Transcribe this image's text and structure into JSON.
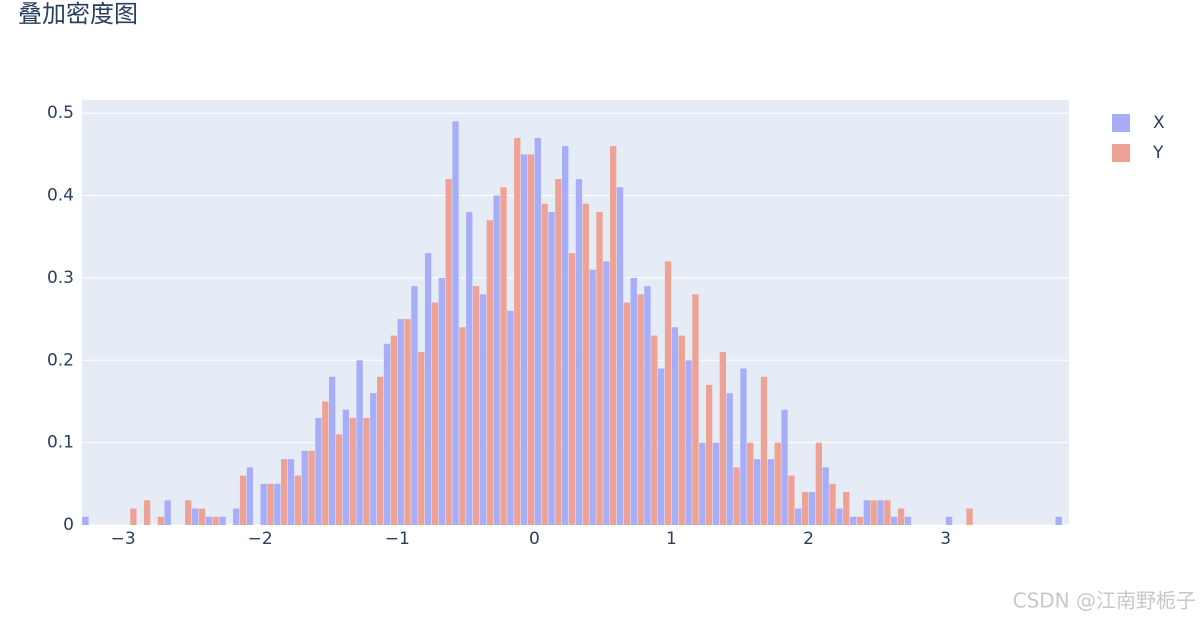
{
  "chart_data": {
    "type": "histogram",
    "title": "叠加密度图",
    "watermark": "CSDN @江南野栀子",
    "barmode": "group",
    "grid": true,
    "legend_position": "top-right",
    "bins": [
      -3.3,
      -3.2,
      -3.1,
      -3.0,
      -2.9,
      -2.8,
      -2.7,
      -2.6,
      -2.5,
      -2.4,
      -2.3,
      -2.2,
      -2.1,
      -2.0,
      -1.9,
      -1.8,
      -1.7,
      -1.6,
      -1.5,
      -1.4,
      -1.3,
      -1.2,
      -1.1,
      -1.0,
      -0.9,
      -0.8,
      -0.7,
      -0.6,
      -0.5,
      -0.4,
      -0.3,
      -0.2,
      -0.1,
      0,
      0.1,
      0.2,
      0.3,
      0.4,
      0.5,
      0.6,
      0.7,
      0.8,
      0.9,
      1.0,
      1.1,
      1.2,
      1.3,
      1.4,
      1.5,
      1.6,
      1.7,
      1.8,
      1.9,
      2.0,
      2.1,
      2.2,
      2.3,
      2.4,
      2.5,
      2.6,
      2.7,
      2.8,
      2.9,
      3.0,
      3.1,
      3.2,
      3.3,
      3.4,
      3.5,
      3.6,
      3.7,
      3.8,
      3.9
    ],
    "series": [
      {
        "name": "X",
        "color": "#a7adf7",
        "values": [
          0.01,
          0,
          0,
          0,
          0,
          0,
          0.03,
          0,
          0.02,
          0.01,
          0.01,
          0.02,
          0.07,
          0.05,
          0.05,
          0.08,
          0.09,
          0.13,
          0.18,
          0.14,
          0.2,
          0.16,
          0.22,
          0.25,
          0.29,
          0.33,
          0.3,
          0.49,
          0.38,
          0.28,
          0.4,
          0.26,
          0.45,
          0.47,
          0.38,
          0.46,
          0.42,
          0.31,
          0.32,
          0.41,
          0.3,
          0.29,
          0.19,
          0.24,
          0.2,
          0.1,
          0.1,
          0.16,
          0.19,
          0.08,
          0.08,
          0.14,
          0.02,
          0.04,
          0.07,
          0.02,
          0.01,
          0.03,
          0.03,
          0.01,
          0.01,
          0,
          0,
          0.01,
          0,
          0,
          0,
          0,
          0,
          0,
          0,
          0.01
        ]
      },
      {
        "name": "Y",
        "color": "#eea295",
        "values": [
          0,
          0,
          0,
          0.02,
          0.03,
          0.01,
          0,
          0.03,
          0.02,
          0.01,
          0,
          0.06,
          0,
          0.05,
          0.08,
          0.06,
          0.09,
          0.15,
          0.11,
          0.13,
          0.13,
          0.18,
          0.23,
          0.25,
          0.21,
          0.27,
          0.42,
          0.24,
          0.29,
          0.37,
          0.41,
          0.47,
          0.45,
          0.39,
          0.42,
          0.33,
          0.39,
          0.38,
          0.46,
          0.27,
          0.28,
          0.23,
          0.32,
          0.23,
          0.28,
          0.17,
          0.21,
          0.07,
          0.1,
          0.18,
          0.1,
          0.06,
          0.04,
          0.1,
          0.05,
          0.04,
          0.01,
          0.03,
          0.03,
          0.02,
          0,
          0,
          0,
          0,
          0.02,
          0,
          0,
          0,
          0,
          0,
          0,
          0
        ]
      }
    ],
    "xlim": [
      -3.3,
      3.9
    ],
    "ylim": [
      0,
      0.516
    ],
    "xticks": [
      {
        "value": -3,
        "label": "−3"
      },
      {
        "value": -2,
        "label": "−2"
      },
      {
        "value": -1,
        "label": "−1"
      },
      0,
      1,
      2,
      3
    ],
    "yticks": [
      0,
      0.1,
      0.2,
      0.3,
      0.4,
      0.5
    ]
  }
}
